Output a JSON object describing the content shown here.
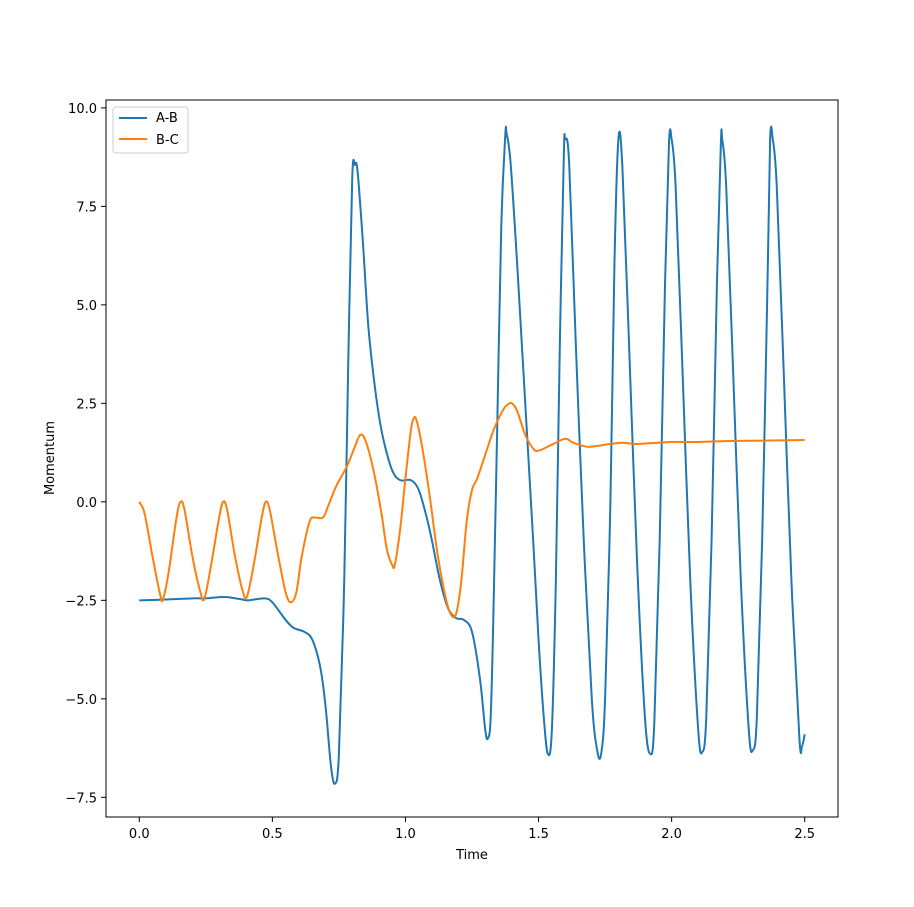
{
  "chart_data": {
    "type": "line",
    "title": "",
    "xlabel": "Time",
    "ylabel": "Momentum",
    "xlim": [
      -0.125,
      2.625
    ],
    "ylim": [
      -8.0,
      10.2
    ],
    "xticks": [
      0.0,
      0.5,
      1.0,
      1.5,
      2.0,
      2.5
    ],
    "xtick_labels": [
      "0.0",
      "0.5",
      "1.0",
      "1.5",
      "2.0",
      "2.5"
    ],
    "yticks": [
      -7.5,
      -5.0,
      -2.5,
      0.0,
      2.5,
      5.0,
      7.5,
      10.0
    ],
    "ytick_labels": [
      "−7.5",
      "−5.0",
      "−2.5",
      "0.0",
      "2.5",
      "5.0",
      "7.5",
      "10.0"
    ],
    "grid": false,
    "legend_position": "top-left",
    "series": [
      {
        "name": "A-B",
        "color": "#1f77b4",
        "points": [
          [
            0.0,
            -2.5
          ],
          [
            0.1,
            -2.48
          ],
          [
            0.2,
            -2.45
          ],
          [
            0.25,
            -2.45
          ],
          [
            0.3,
            -2.42
          ],
          [
            0.33,
            -2.42
          ],
          [
            0.38,
            -2.47
          ],
          [
            0.41,
            -2.5
          ],
          [
            0.47,
            -2.45
          ],
          [
            0.5,
            -2.55
          ],
          [
            0.55,
            -3.0
          ],
          [
            0.58,
            -3.2
          ],
          [
            0.62,
            -3.3
          ],
          [
            0.65,
            -3.5
          ],
          [
            0.68,
            -4.2
          ],
          [
            0.7,
            -5.2
          ],
          [
            0.72,
            -6.7
          ],
          [
            0.735,
            -7.15
          ],
          [
            0.75,
            -6.4
          ],
          [
            0.77,
            -2.0
          ],
          [
            0.785,
            3.5
          ],
          [
            0.8,
            8.2
          ],
          [
            0.81,
            8.55
          ],
          [
            0.82,
            8.4
          ],
          [
            0.84,
            6.6
          ],
          [
            0.86,
            4.5
          ],
          [
            0.88,
            3.2
          ],
          [
            0.9,
            2.2
          ],
          [
            0.92,
            1.5
          ],
          [
            0.95,
            0.8
          ],
          [
            0.98,
            0.55
          ],
          [
            1.02,
            0.55
          ],
          [
            1.05,
            0.3
          ],
          [
            1.08,
            -0.4
          ],
          [
            1.1,
            -1.0
          ],
          [
            1.13,
            -2.0
          ],
          [
            1.16,
            -2.7
          ],
          [
            1.19,
            -2.95
          ],
          [
            1.22,
            -3.0
          ],
          [
            1.25,
            -3.3
          ],
          [
            1.28,
            -4.5
          ],
          [
            1.3,
            -5.8
          ],
          [
            1.31,
            -6.0
          ],
          [
            1.32,
            -5.5
          ],
          [
            1.33,
            -3.0
          ],
          [
            1.345,
            2.0
          ],
          [
            1.36,
            7.0
          ],
          [
            1.375,
            9.3
          ],
          [
            1.38,
            9.35
          ],
          [
            1.395,
            8.6
          ],
          [
            1.42,
            6.0
          ],
          [
            1.45,
            2.5
          ],
          [
            1.48,
            -1.0
          ],
          [
            1.5,
            -3.5
          ],
          [
            1.52,
            -5.5
          ],
          [
            1.535,
            -6.4
          ],
          [
            1.55,
            -5.8
          ],
          [
            1.565,
            -2.0
          ],
          [
            1.58,
            4.0
          ],
          [
            1.595,
            8.8
          ],
          [
            1.6,
            9.2
          ],
          [
            1.615,
            8.6
          ],
          [
            1.64,
            4.0
          ],
          [
            1.67,
            -1.0
          ],
          [
            1.7,
            -5.0
          ],
          [
            1.72,
            -6.3
          ],
          [
            1.735,
            -6.4
          ],
          [
            1.75,
            -5.0
          ],
          [
            1.77,
            0.0
          ],
          [
            1.785,
            6.0
          ],
          [
            1.8,
            9.2
          ],
          [
            1.815,
            8.5
          ],
          [
            1.84,
            4.0
          ],
          [
            1.87,
            -1.5
          ],
          [
            1.9,
            -5.5
          ],
          [
            1.92,
            -6.4
          ],
          [
            1.935,
            -5.6
          ],
          [
            1.955,
            -1.0
          ],
          [
            1.975,
            5.5
          ],
          [
            1.99,
            9.1
          ],
          [
            2.0,
            9.2
          ],
          [
            2.015,
            8.0
          ],
          [
            2.04,
            3.5
          ],
          [
            2.07,
            -2.0
          ],
          [
            2.1,
            -5.8
          ],
          [
            2.115,
            -6.35
          ],
          [
            2.13,
            -5.5
          ],
          [
            2.15,
            -1.0
          ],
          [
            2.17,
            5.5
          ],
          [
            2.185,
            9.1
          ],
          [
            2.19,
            9.2
          ],
          [
            2.205,
            8.0
          ],
          [
            2.23,
            3.5
          ],
          [
            2.26,
            -2.0
          ],
          [
            2.29,
            -5.8
          ],
          [
            2.305,
            -6.3
          ],
          [
            2.32,
            -5.5
          ],
          [
            2.34,
            -1.0
          ],
          [
            2.36,
            5.5
          ],
          [
            2.37,
            9.2
          ],
          [
            2.38,
            9.2
          ],
          [
            2.395,
            8.0
          ],
          [
            2.42,
            3.5
          ],
          [
            2.45,
            -2.0
          ],
          [
            2.48,
            -6.0
          ],
          [
            2.49,
            -6.2
          ],
          [
            2.5,
            -5.9
          ]
        ]
      },
      {
        "name": "B-C",
        "color": "#ff7f0e",
        "points": [
          [
            0.0,
            0.0
          ],
          [
            0.02,
            -0.3
          ],
          [
            0.05,
            -1.4
          ],
          [
            0.08,
            -2.4
          ],
          [
            0.09,
            -2.45
          ],
          [
            0.11,
            -1.8
          ],
          [
            0.14,
            -0.4
          ],
          [
            0.155,
            0.0
          ],
          [
            0.17,
            -0.2
          ],
          [
            0.2,
            -1.4
          ],
          [
            0.23,
            -2.3
          ],
          [
            0.245,
            -2.45
          ],
          [
            0.27,
            -1.6
          ],
          [
            0.3,
            -0.4
          ],
          [
            0.315,
            0.0
          ],
          [
            0.33,
            -0.2
          ],
          [
            0.36,
            -1.4
          ],
          [
            0.39,
            -2.3
          ],
          [
            0.405,
            -2.4
          ],
          [
            0.43,
            -1.6
          ],
          [
            0.46,
            -0.4
          ],
          [
            0.475,
            0.0
          ],
          [
            0.49,
            -0.2
          ],
          [
            0.52,
            -1.3
          ],
          [
            0.55,
            -2.3
          ],
          [
            0.57,
            -2.55
          ],
          [
            0.59,
            -2.3
          ],
          [
            0.61,
            -1.4
          ],
          [
            0.64,
            -0.5
          ],
          [
            0.66,
            -0.4
          ],
          [
            0.69,
            -0.4
          ],
          [
            0.71,
            -0.1
          ],
          [
            0.74,
            0.4
          ],
          [
            0.78,
            0.9
          ],
          [
            0.81,
            1.4
          ],
          [
            0.83,
            1.7
          ],
          [
            0.85,
            1.55
          ],
          [
            0.88,
            0.8
          ],
          [
            0.91,
            -0.3
          ],
          [
            0.93,
            -1.2
          ],
          [
            0.95,
            -1.6
          ],
          [
            0.96,
            -1.6
          ],
          [
            0.98,
            -0.7
          ],
          [
            1.0,
            0.6
          ],
          [
            1.02,
            1.8
          ],
          [
            1.03,
            2.1
          ],
          [
            1.04,
            2.1
          ],
          [
            1.06,
            1.5
          ],
          [
            1.09,
            0.2
          ],
          [
            1.12,
            -1.3
          ],
          [
            1.15,
            -2.4
          ],
          [
            1.17,
            -2.85
          ],
          [
            1.19,
            -2.85
          ],
          [
            1.21,
            -2.0
          ],
          [
            1.23,
            -0.5
          ],
          [
            1.25,
            0.3
          ],
          [
            1.27,
            0.6
          ],
          [
            1.3,
            1.2
          ],
          [
            1.33,
            1.8
          ],
          [
            1.36,
            2.25
          ],
          [
            1.38,
            2.45
          ],
          [
            1.4,
            2.5
          ],
          [
            1.42,
            2.3
          ],
          [
            1.45,
            1.7
          ],
          [
            1.48,
            1.35
          ],
          [
            1.5,
            1.3
          ],
          [
            1.55,
            1.45
          ],
          [
            1.6,
            1.6
          ],
          [
            1.63,
            1.5
          ],
          [
            1.68,
            1.4
          ],
          [
            1.72,
            1.42
          ],
          [
            1.78,
            1.48
          ],
          [
            1.82,
            1.5
          ],
          [
            1.86,
            1.47
          ],
          [
            1.9,
            1.48
          ],
          [
            1.95,
            1.5
          ],
          [
            2.0,
            1.52
          ],
          [
            2.1,
            1.52
          ],
          [
            2.2,
            1.54
          ],
          [
            2.3,
            1.55
          ],
          [
            2.4,
            1.56
          ],
          [
            2.5,
            1.57
          ]
        ]
      }
    ]
  }
}
